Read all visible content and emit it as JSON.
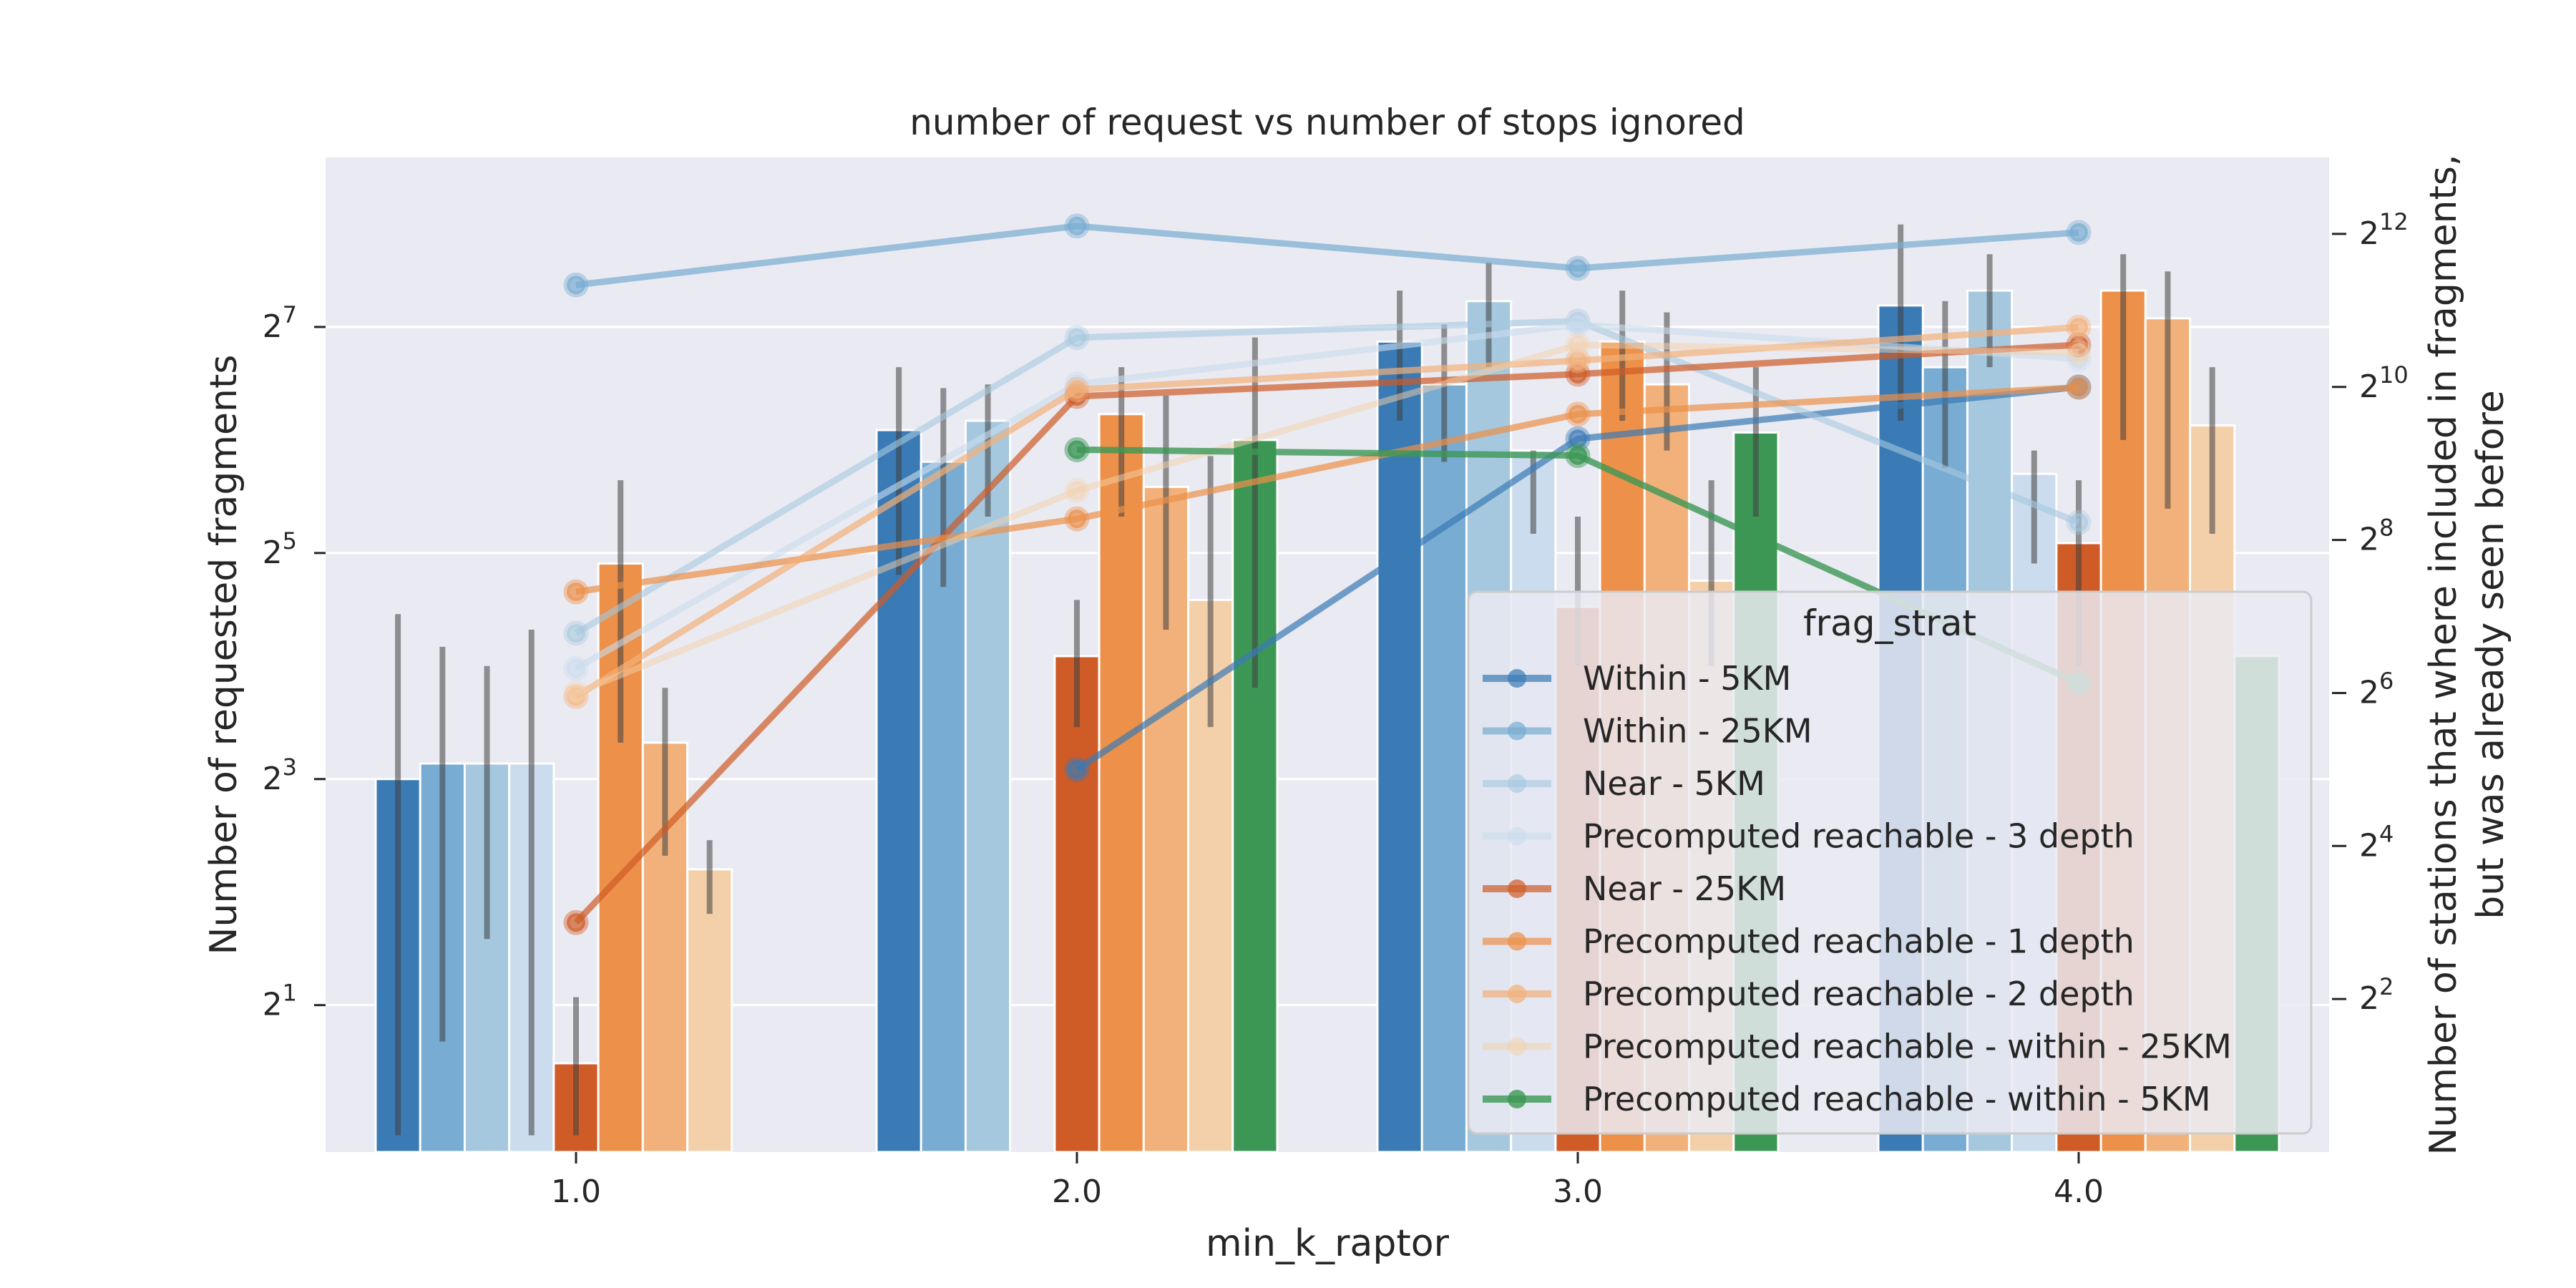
{
  "chart_data": {
    "type": "bar",
    "title": "number of request vs number of stops ignored",
    "xlabel": "min_k_raptor",
    "ylabel": "Number of requested fragments",
    "y2label": [
      "Number of stations that where included in fragments,",
      "but was already seen before"
    ],
    "categories": [
      "1.0",
      "2.0",
      "3.0",
      "4.0"
    ],
    "y_scale": "log2",
    "ylim_log2": [
      -0.3,
      8.5
    ],
    "y_ticks": [
      {
        "base": "2",
        "exp": "1",
        "value": 2
      },
      {
        "base": "2",
        "exp": "3",
        "value": 8
      },
      {
        "base": "2",
        "exp": "5",
        "value": 32
      },
      {
        "base": "2",
        "exp": "7",
        "value": 128
      }
    ],
    "y2_scale": "log2",
    "y2lim_log2": [
      0.0,
      13.0
    ],
    "y2_ticks": [
      {
        "base": "2",
        "exp": "2",
        "value": 4
      },
      {
        "base": "2",
        "exp": "4",
        "value": 16
      },
      {
        "base": "2",
        "exp": "6",
        "value": 64
      },
      {
        "base": "2",
        "exp": "8",
        "value": 256
      },
      {
        "base": "2",
        "exp": "10",
        "value": 1024
      },
      {
        "base": "2",
        "exp": "12",
        "value": 4096
      }
    ],
    "legend_title": "frag_strat",
    "legend_position": "lower-right",
    "grid": true,
    "series": [
      {
        "name": "Within - 5KM",
        "color": "#3a7ab5",
        "bars": [
          8,
          68,
          117,
          146
        ],
        "bar_err": [
          [
            0.9,
            22
          ],
          [
            28,
            100
          ],
          [
            72,
            160
          ],
          [
            72,
            240
          ]
        ],
        "line": [
          null,
          32,
          640,
          1024
        ],
        "line_alpha": 0.7
      },
      {
        "name": "Within - 25KM",
        "color": "#78acd2",
        "bars": [
          8.8,
          56,
          90,
          100
        ],
        "bar_err": [
          [
            1.6,
            18
          ],
          [
            26,
            88
          ],
          [
            56,
            130
          ],
          [
            54,
            150
          ]
        ],
        "line": [
          2580,
          4400,
          3000,
          4150
        ],
        "line_alpha": 0.7
      },
      {
        "name": "Near - 5KM",
        "color": "#a5c8df",
        "bars": [
          8.8,
          72,
          150,
          160
        ],
        "bar_err": [
          [
            3,
            16
          ],
          [
            40,
            90
          ],
          [
            100,
            190
          ],
          [
            100,
            200
          ]
        ],
        "line": [
          110,
          1600,
          1860,
          300
        ],
        "line_alpha": 0.6
      },
      {
        "name": "Precomputed reachable - 3 depth",
        "color": "#cadced",
        "bars": [
          8.8,
          null,
          60,
          52
        ],
        "bar_err": [
          [
            0.9,
            20
          ],
          [
            null,
            null
          ],
          [
            36,
            60
          ],
          [
            30,
            60
          ]
        ],
        "line": [
          80,
          1050,
          1800,
          1320
        ],
        "line_alpha": 0.6
      },
      {
        "name": "Near - 25KM",
        "color": "#cf5b27",
        "bars": [
          1.4,
          17,
          23,
          34
        ],
        "bar_err": [
          [
            0.9,
            2.1
          ],
          [
            11,
            24
          ],
          [
            16,
            40
          ],
          [
            16,
            50
          ]
        ],
        "line": [
          8,
          940,
          1150,
          1500
        ],
        "line_alpha": 0.7
      },
      {
        "name": "Precomputed reachable - 1 depth",
        "color": "#ed9049",
        "bars": [
          30,
          75,
          117,
          160
        ],
        "bar_err": [
          [
            10,
            50
          ],
          [
            40,
            100
          ],
          [
            72,
            160
          ],
          [
            64,
            200
          ]
        ],
        "line": [
          160,
          310,
          800,
          1020
        ],
        "line_alpha": 0.7
      },
      {
        "name": "Precomputed reachable - 2 depth",
        "color": "#f2b17b",
        "bars": [
          10,
          48,
          90,
          135
        ],
        "bar_err": [
          [
            5,
            14
          ],
          [
            20,
            84
          ],
          [
            60,
            140
          ],
          [
            42,
            180
          ]
        ],
        "line": [
          62,
          1000,
          1300,
          1760
        ],
        "line_alpha": 0.7
      },
      {
        "name": "Precomputed reachable - within - 25KM",
        "color": "#f4d0aa",
        "bars": [
          4.6,
          24,
          27,
          70
        ],
        "bar_err": [
          [
            3.5,
            5.5
          ],
          [
            11,
            58
          ],
          [
            16,
            50
          ],
          [
            36,
            100
          ]
        ],
        "line": [
          64,
          400,
          1500,
          1400
        ],
        "line_alpha": 0.5
      },
      {
        "name": "Precomputed reachable - within - 5KM",
        "color": "#3c9755",
        "bars": [
          null,
          64,
          67,
          17
        ],
        "bar_err": [
          [
            null,
            null
          ],
          [
            14,
            120
          ],
          [
            40,
            100
          ],
          [
            null,
            null
          ]
        ],
        "line": [
          null,
          580,
          550,
          70
        ],
        "line_alpha": 0.8
      }
    ]
  }
}
